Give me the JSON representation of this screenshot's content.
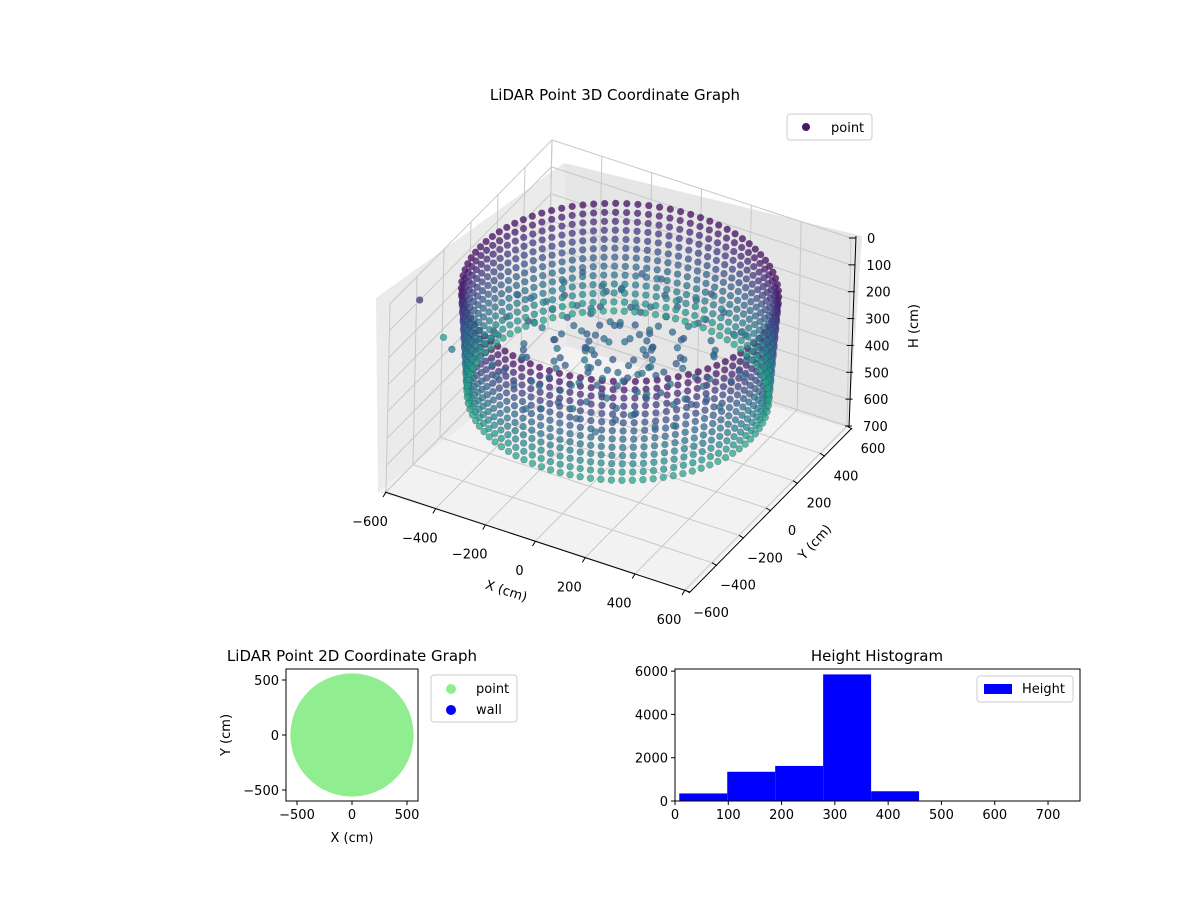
{
  "chart_data": [
    {
      "type": "scatter3d",
      "title": "LiDAR Point 3D Coordinate Graph",
      "xlabel": "X (cm)",
      "ylabel": "Y (cm)",
      "zlabel": "H (cm)",
      "xlim": [
        -600,
        600
      ],
      "ylim": [
        -600,
        600
      ],
      "zlim": [
        0,
        700
      ],
      "z_inverted": true,
      "xticks": [
        "−600",
        "−400",
        "−200",
        "0",
        "200",
        "400",
        "600"
      ],
      "yticks": [
        "−600",
        "−400",
        "−200",
        "0",
        "200",
        "400",
        "600"
      ],
      "zticks": [
        "0",
        "100",
        "200",
        "300",
        "400",
        "500",
        "600",
        "700"
      ],
      "colormap": "viridis",
      "legend": {
        "label": "point",
        "position": "top-right"
      },
      "series": [
        {
          "name": "point",
          "shape": "ring",
          "ring_radius": 560,
          "height_range": [
            80,
            470
          ],
          "inner_floor_height": 300
        }
      ]
    },
    {
      "type": "scatter",
      "title": "LiDAR Point 2D Coordinate Graph",
      "xlabel": "X (cm)",
      "ylabel": "Y (cm)",
      "xlim": [
        -600,
        600
      ],
      "ylim": [
        -600,
        600
      ],
      "xticks": [
        "−500",
        "0",
        "500"
      ],
      "yticks": [
        "500",
        "0",
        "−500"
      ],
      "legend": {
        "position": "outside-right"
      },
      "series": [
        {
          "name": "point",
          "color": "#90ee90",
          "shape": "filled-disc",
          "radius": 560
        },
        {
          "name": "wall",
          "color": "#0000ff",
          "shape": "none"
        }
      ]
    },
    {
      "type": "bar",
      "title": "Height Histogram",
      "xlim": [
        0,
        760
      ],
      "ylim": [
        0,
        6100
      ],
      "xticks": [
        "0",
        "100",
        "200",
        "300",
        "400",
        "500",
        "600",
        "700"
      ],
      "yticks": [
        "0",
        "2000",
        "4000",
        "6000"
      ],
      "bin_edges": [
        8,
        98,
        188,
        278,
        368,
        458,
        548,
        638,
        728
      ],
      "values": [
        350,
        1350,
        1620,
        5850,
        450,
        0,
        0,
        0
      ],
      "legend": {
        "label": "Height",
        "position": "top-right"
      },
      "series": [
        {
          "name": "Height",
          "color": "#0000ff"
        }
      ]
    }
  ]
}
